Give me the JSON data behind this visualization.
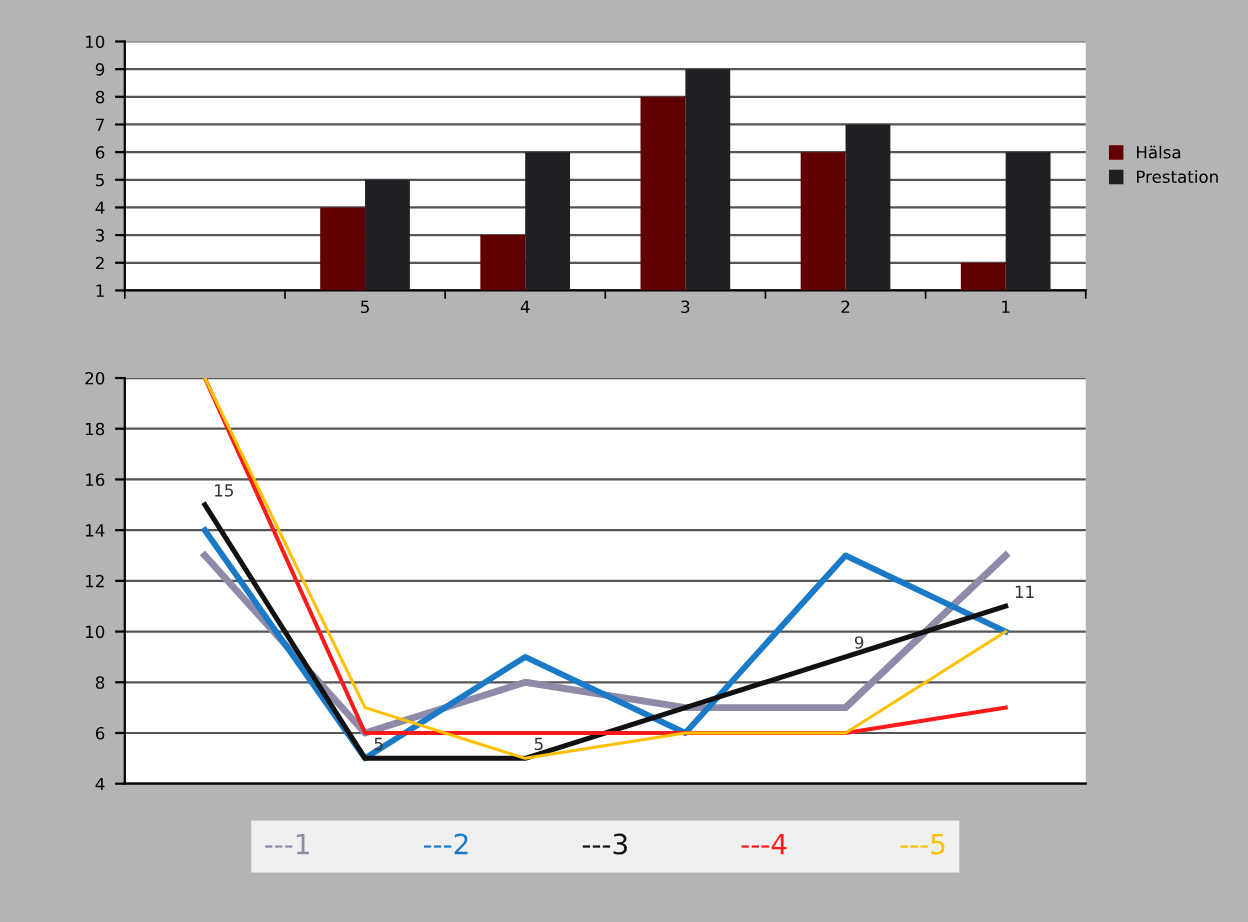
{
  "chart_data": [
    {
      "type": "bar",
      "categories": [
        null,
        "5",
        "4",
        "3",
        "2",
        "1"
      ],
      "ylim": [
        1,
        10
      ],
      "yticks": [
        1,
        2,
        3,
        4,
        5,
        6,
        7,
        8,
        9,
        10
      ],
      "grid": "y",
      "legend": "right",
      "series": [
        {
          "name": "Hälsa",
          "color": "#600000",
          "values": [
            null,
            4,
            3,
            8,
            6,
            2
          ]
        },
        {
          "name": "Prestation",
          "color": "#1f1f24",
          "values": [
            null,
            5,
            6,
            9,
            7,
            6
          ]
        }
      ]
    },
    {
      "type": "line",
      "categories": [
        null,
        null,
        null,
        null,
        null,
        null
      ],
      "ylim": [
        4,
        20
      ],
      "yticks": [
        4,
        6,
        8,
        10,
        12,
        14,
        16,
        18,
        20
      ],
      "grid": "y",
      "legend": "bottom",
      "marker": "none",
      "line_style": "solid",
      "series": [
        {
          "name": "---1",
          "color": "#8e8aa8",
          "values": [
            13,
            6,
            8,
            7,
            7,
            13
          ]
        },
        {
          "name": "---2",
          "color": "#1a7ac8",
          "values": [
            14,
            5,
            9,
            6,
            13,
            10
          ]
        },
        {
          "name": "---3",
          "color": "#111111",
          "values": [
            15,
            5,
            5,
            7,
            9,
            11
          ],
          "value_labels": [
            "15",
            "5",
            "5",
            null,
            "9",
            "11"
          ]
        },
        {
          "name": "---4",
          "color": "#ff1a1a",
          "values": [
            20,
            6,
            6,
            6,
            6,
            7
          ]
        },
        {
          "name": "---5",
          "color": "#ffc000",
          "values": [
            20,
            7,
            5,
            6,
            6,
            10
          ]
        }
      ]
    }
  ]
}
